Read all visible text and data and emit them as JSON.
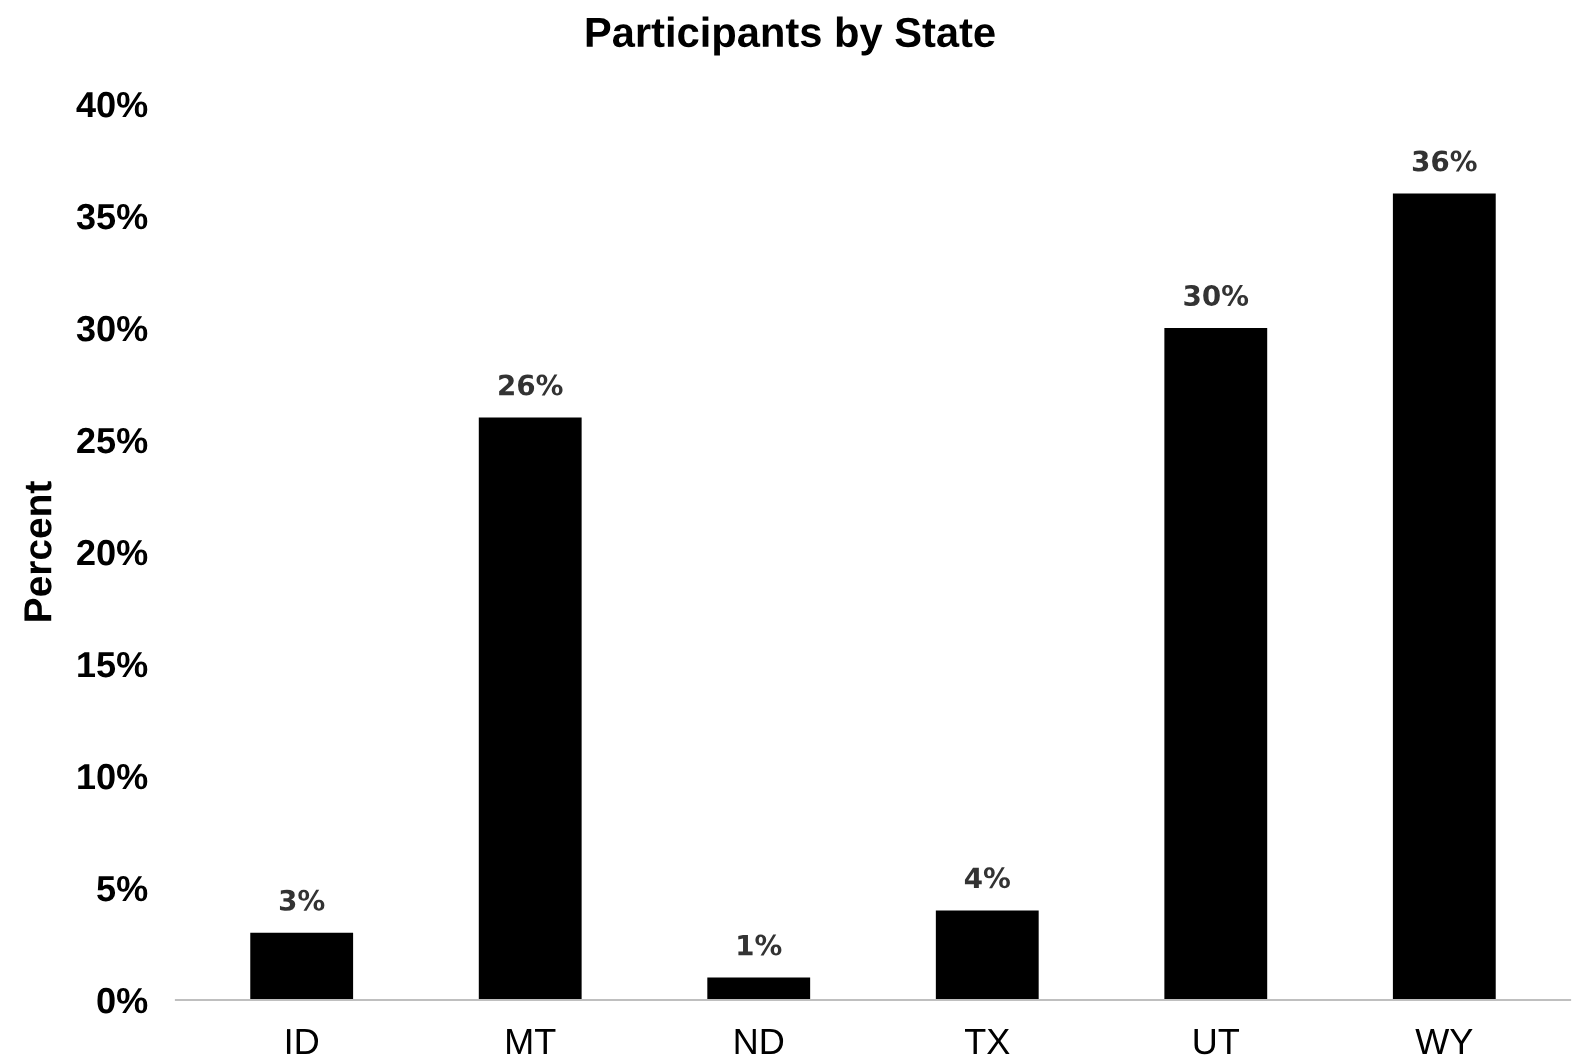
{
  "chart_data": {
    "type": "bar",
    "title": "Participants by State",
    "ylabel": "Percent",
    "categories": [
      "ID",
      "MT",
      "ND",
      "TX",
      "UT",
      "WY"
    ],
    "values": [
      3,
      26,
      1,
      4,
      30,
      36
    ],
    "value_labels": [
      "3%",
      "26%",
      "1%",
      "4%",
      "30%",
      "36%"
    ],
    "color": "#000000",
    "ylim": [
      0,
      40
    ],
    "yticks": [
      {
        "value": 0,
        "label": "0%"
      },
      {
        "value": 5,
        "label": "5%"
      },
      {
        "value": 10,
        "label": "10%"
      },
      {
        "value": 15,
        "label": "15%"
      },
      {
        "value": 20,
        "label": "20%"
      },
      {
        "value": 25,
        "label": "25%"
      },
      {
        "value": 30,
        "label": "30%"
      },
      {
        "value": 35,
        "label": "35%"
      },
      {
        "value": 40,
        "label": "40%"
      }
    ],
    "grid": false,
    "legend": false
  }
}
